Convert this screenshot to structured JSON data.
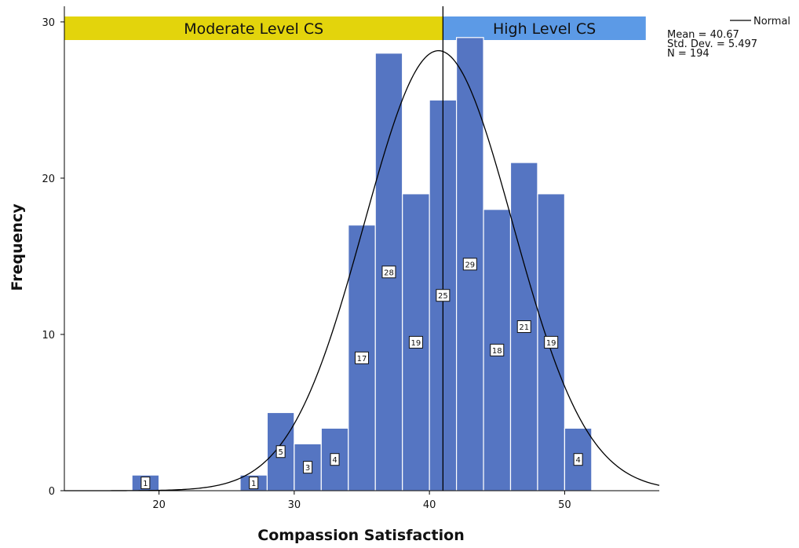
{
  "chart_data": {
    "type": "bar",
    "title": "",
    "xlabel": "Compassion Satisfaction",
    "ylabel": "Frequency",
    "xlim": [
      13,
      57
    ],
    "ylim": [
      0,
      31
    ],
    "x_ticks": [
      "20",
      "30",
      "40",
      "50"
    ],
    "y_ticks": [
      "0",
      "10",
      "20",
      "30"
    ],
    "bin_width": 2,
    "bins": [
      {
        "start": 18,
        "end": 20,
        "value": 1,
        "label": "1"
      },
      {
        "start": 26,
        "end": 28,
        "value": 1,
        "label": "1"
      },
      {
        "start": 28,
        "end": 30,
        "value": 5,
        "label": "5"
      },
      {
        "start": 30,
        "end": 32,
        "value": 3,
        "label": "3"
      },
      {
        "start": 32,
        "end": 34,
        "value": 4,
        "label": "4"
      },
      {
        "start": 34,
        "end": 36,
        "value": 17,
        "label": "17"
      },
      {
        "start": 36,
        "end": 38,
        "value": 28,
        "label": "28"
      },
      {
        "start": 38,
        "end": 40,
        "value": 19,
        "label": "19"
      },
      {
        "start": 40,
        "end": 42,
        "value": 25,
        "label": "25"
      },
      {
        "start": 42,
        "end": 44,
        "value": 29,
        "label": "29"
      },
      {
        "start": 44,
        "end": 46,
        "value": 18,
        "label": "18"
      },
      {
        "start": 46,
        "end": 48,
        "value": 21,
        "label": "21"
      },
      {
        "start": 48,
        "end": 50,
        "value": 19,
        "label": "19"
      },
      {
        "start": 50,
        "end": 52,
        "value": 4,
        "label": "4"
      }
    ],
    "normal_curve": {
      "name": "Normal",
      "mean": 40.67,
      "sd": 5.497,
      "n": 194
    },
    "reference_line_x": 41,
    "bands": [
      {
        "label": "Moderate Level CS",
        "start": 13,
        "end": 41,
        "color": "#e3d40c"
      },
      {
        "label": "High Level CS",
        "start": 41,
        "end": 56,
        "color": "#5c9ae6"
      }
    ],
    "legend": {
      "position": "top-right",
      "series_label": "Normal",
      "stats": [
        "Mean = 40.67",
        "Std. Dev. = 5.497",
        "N = 194"
      ]
    },
    "bar_color": "#5575c2",
    "grid": false
  }
}
